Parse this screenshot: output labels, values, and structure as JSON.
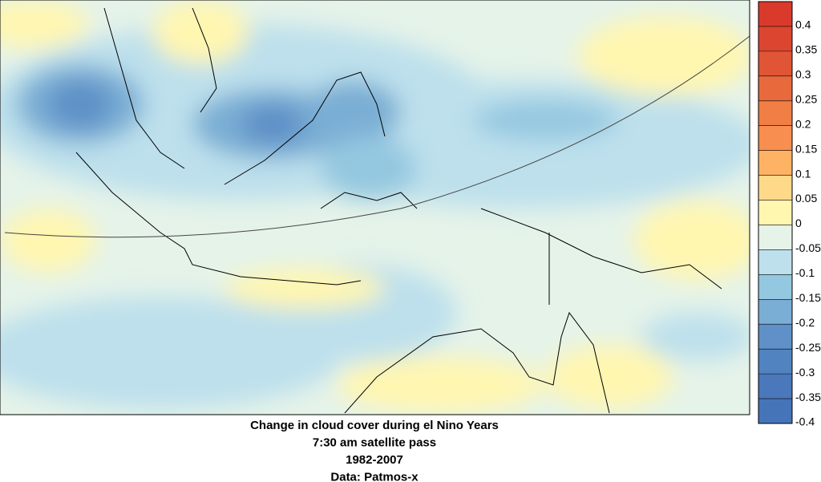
{
  "map": {
    "caption": [
      "Change in cloud cover during el Nino Years",
      "7:30 am satellite pass",
      "1982-2007",
      "Data: Patmos-x"
    ],
    "colorbar": {
      "lim": [
        -0.4,
        0.45
      ],
      "ticks": [
        0.4,
        0.35,
        0.3,
        0.25,
        0.2,
        0.15,
        0.1,
        0.05,
        0,
        -0.05,
        -0.1,
        -0.15,
        -0.2,
        -0.25,
        -0.3,
        -0.35,
        -0.4
      ],
      "colors": [
        "#4574b8",
        "#4a78bb",
        "#5183c0",
        "#5f90c7",
        "#7aaed4",
        "#94c8e0",
        "#bde0ec",
        "#e5f3e9",
        "#fff6b0",
        "#fed98a",
        "#fdb363",
        "#f88e4f",
        "#f07e45",
        "#e86a3c",
        "#e05535",
        "#dc4530",
        "#d93a2b"
      ]
    }
  }
}
